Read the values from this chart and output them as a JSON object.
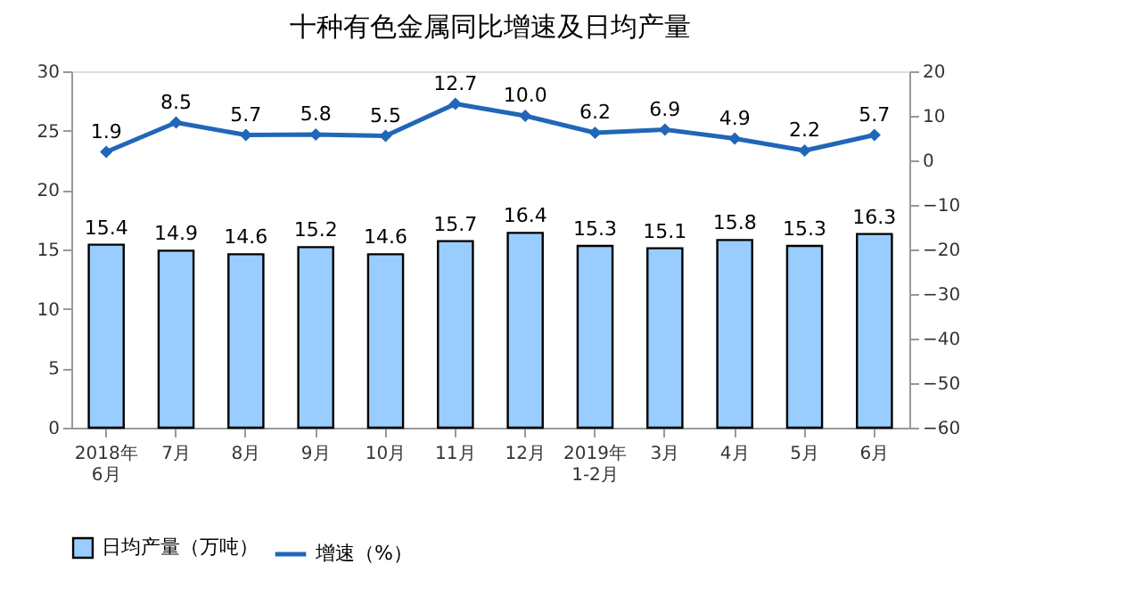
{
  "chart_data": {
    "type": "bar",
    "title": "十种有色金属同比增速及日均产量",
    "categories": [
      "2018年\n6月",
      "7月",
      "8月",
      "9月",
      "10月",
      "11月",
      "12月",
      "2019年\n1-2月",
      "3月",
      "4月",
      "5月",
      "6月"
    ],
    "series": [
      {
        "name": "日均产量（万吨）",
        "color": "#99ccff",
        "values": [
          15.4,
          14.9,
          14.6,
          15.2,
          14.6,
          15.7,
          16.4,
          15.3,
          15.1,
          15.8,
          15.3,
          16.3
        ]
      },
      {
        "name": "增速（%）",
        "type": "line",
        "axis": "y2",
        "color": "#2166b8",
        "marker": "diamond",
        "values": [
          1.9,
          8.5,
          5.7,
          5.8,
          5.5,
          12.7,
          10.0,
          6.2,
          6.9,
          4.9,
          2.2,
          5.7
        ],
        "value_labels": [
          "1.9",
          "8.5",
          "5.7",
          "5.8",
          "5.5",
          "12.7",
          "10.0",
          "6.2",
          "6.9",
          "4.9",
          "2.2",
          "5.7"
        ]
      }
    ],
    "ylim": [
      0,
      30
    ],
    "yticks": [
      0,
      5,
      10,
      15,
      20,
      25,
      30
    ],
    "y2lim": [
      -60,
      20
    ],
    "y2ticks": [
      -60,
      -50,
      -40,
      -30,
      -20,
      -10,
      0,
      10,
      20
    ],
    "data_labels": true,
    "legend": "bottom",
    "grid": false
  }
}
